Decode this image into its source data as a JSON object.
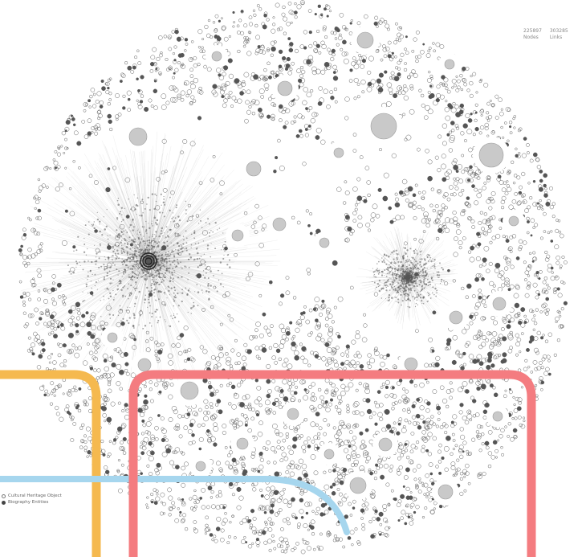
{
  "stats": [
    {
      "value": "225897",
      "label": "Nodes"
    },
    {
      "value": "303285",
      "label": "Links"
    }
  ],
  "legend": [
    {
      "label": "Cultural Heritage Object",
      "style": "outline"
    },
    {
      "label": "Biography Entities",
      "style": "filled"
    }
  ],
  "colors": {
    "node": "#555555",
    "large_node": "#c9c9c9",
    "overlay_orange": "#f5b94f",
    "overlay_red": "#f47c80",
    "overlay_blue": "#a6d6ee"
  }
}
